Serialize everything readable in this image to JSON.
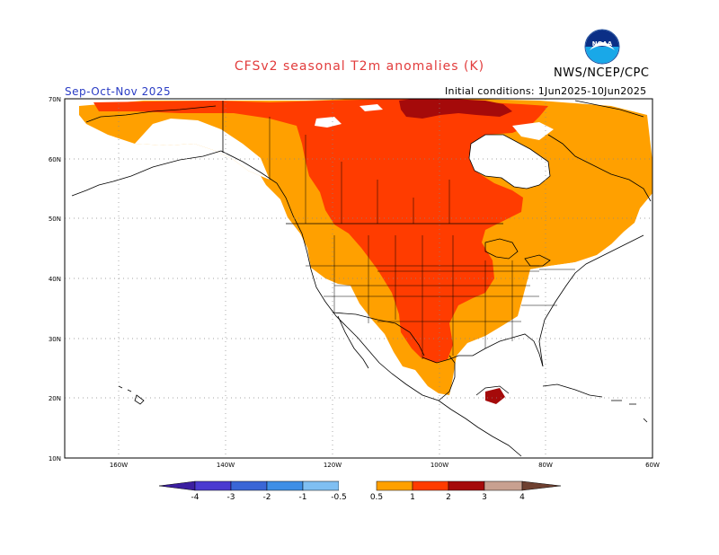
{
  "header": {
    "title": "CFSv2 seasonal T2m anomalies (K)",
    "agency": "NWS/NCEP/CPC",
    "logo_text": "NOAA",
    "season": "Sep-Oct-Nov 2025",
    "initial_conditions": "Initial conditions: 1Jun2025-10Jun2025"
  },
  "map": {
    "lat_labels": [
      "70N",
      "60N",
      "50N",
      "40N",
      "30N",
      "20N",
      "10N"
    ],
    "lon_labels": [
      "160W",
      "140W",
      "120W",
      "100W",
      "80W",
      "60W"
    ],
    "lon_range": [
      -170,
      -60
    ],
    "lat_range": [
      10,
      70
    ],
    "gridlines": "dotted"
  },
  "colorbar": {
    "tick_labels": [
      "-4",
      "-3",
      "-2",
      "-1",
      "-0.5",
      "0.5",
      "1",
      "2",
      "3",
      "4"
    ],
    "bins": [
      {
        "range": "< -4",
        "color": "#3b1ea0"
      },
      {
        "range": "-4 to -3",
        "color": "#4a3ad0"
      },
      {
        "range": "-3 to -2",
        "color": "#3a66d6"
      },
      {
        "range": "-2 to -1",
        "color": "#3f8fe6"
      },
      {
        "range": "-1 to -0.5",
        "color": "#7fbff2"
      },
      {
        "range": "-0.5 to 0.5",
        "color": "#ffffff"
      },
      {
        "range": "0.5 to 1",
        "color": "#ffa000"
      },
      {
        "range": "1 to 2",
        "color": "#ff3c00"
      },
      {
        "range": "2 to 3",
        "color": "#a50a0a"
      },
      {
        "range": "3 to 4",
        "color": "#c8a090"
      },
      {
        "range": "> 4",
        "color": "#6e4030"
      }
    ]
  },
  "colors": {
    "title": "#e23c3c",
    "season": "#2a3cc4",
    "anomaly_05_1": "#ffa000",
    "anomaly_1_2": "#ff3c00",
    "anomaly_2_3": "#a50a0a"
  }
}
